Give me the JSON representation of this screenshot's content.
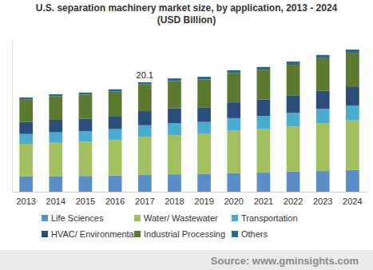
{
  "chart_data": {
    "type": "bar",
    "title": "U.S. separation machinery market size, by application, 2013 - 2024",
    "subtitle": "(USD Billion)",
    "source": "Source: www.gminsights.com",
    "categories": [
      "2013",
      "2014",
      "2015",
      "2016",
      "2017",
      "2018",
      "2019",
      "2020",
      "2021",
      "2022",
      "2023",
      "2024"
    ],
    "series": [
      {
        "name": "Life Sciences",
        "color": "#5b8ec6",
        "values": [
          2.8,
          2.8,
          2.9,
          3.0,
          3.1,
          3.2,
          3.3,
          3.4,
          3.5,
          3.7,
          3.8,
          4.0
        ]
      },
      {
        "name": "Water/ Wastewater",
        "color": "#a2c05f",
        "values": [
          6.0,
          6.2,
          6.3,
          6.5,
          7.0,
          7.2,
          7.3,
          7.8,
          8.0,
          8.3,
          8.8,
          9.1
        ]
      },
      {
        "name": "Transportation",
        "color": "#4aaccf",
        "values": [
          1.8,
          1.9,
          1.9,
          2.0,
          2.1,
          2.2,
          2.2,
          2.3,
          2.4,
          2.5,
          2.6,
          2.7
        ]
      },
      {
        "name": "HVAC/ Environmental",
        "color": "#2a4d7a",
        "values": [
          2.2,
          2.3,
          2.3,
          2.4,
          2.6,
          2.7,
          2.7,
          2.9,
          3.0,
          3.1,
          3.3,
          3.4
        ]
      },
      {
        "name": "Industrial Processing",
        "color": "#5b7a2f",
        "values": [
          4.1,
          4.3,
          4.4,
          4.5,
          4.9,
          5.0,
          5.1,
          5.4,
          5.5,
          5.7,
          6.0,
          6.3
        ]
      },
      {
        "name": "Others",
        "color": "#2b6a87",
        "values": [
          0.4,
          0.4,
          0.4,
          0.4,
          0.4,
          0.5,
          0.5,
          0.5,
          0.5,
          0.6,
          0.6,
          0.6
        ]
      }
    ],
    "annotations": [
      {
        "text": "20.1",
        "x": "2017",
        "y": 20.1
      }
    ],
    "ylim": [
      0,
      28
    ],
    "stacked": true,
    "grid": false,
    "legend": "bottom",
    "tick_labels": "x"
  }
}
